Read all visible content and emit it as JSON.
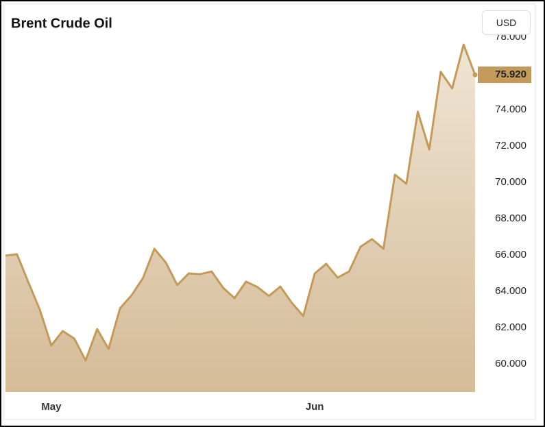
{
  "chart_data": {
    "type": "area",
    "title": "Brent Crude Oil",
    "currency": "USD",
    "categories": [
      null,
      null,
      null,
      null,
      "May",
      null,
      null,
      null,
      null,
      null,
      null,
      null,
      null,
      null,
      null,
      null,
      null,
      null,
      null,
      null,
      null,
      null,
      null,
      null,
      null,
      null,
      null,
      "Jun",
      null,
      null,
      null,
      null,
      null,
      null,
      null,
      null,
      null,
      null,
      null,
      null,
      null,
      null
    ],
    "series": [
      {
        "name": "Brent Crude Oil",
        "color": "#c49a5a",
        "values": [
          65.96,
          66.04,
          64.49,
          62.98,
          61.02,
          61.81,
          61.4,
          60.19,
          61.92,
          60.83,
          63.06,
          63.77,
          64.72,
          66.34,
          65.58,
          64.34,
          64.98,
          64.94,
          65.09,
          64.19,
          63.62,
          64.53,
          64.23,
          63.74,
          64.26,
          63.36,
          62.64,
          64.98,
          65.51,
          64.75,
          65.09,
          66.45,
          66.87,
          66.34,
          70.42,
          69.92,
          73.89,
          71.81,
          76.08,
          75.17,
          77.58,
          75.92
        ]
      }
    ],
    "last_price": {
      "value": 75.92,
      "label": "75.920"
    },
    "ylim": [
      58.45,
      78.34
    ],
    "yticks": [
      {
        "value": 60,
        "label": "60.000"
      },
      {
        "value": 62,
        "label": "62.000"
      },
      {
        "value": 64,
        "label": "64.000"
      },
      {
        "value": 66,
        "label": "66.000"
      },
      {
        "value": 68,
        "label": "68.000"
      },
      {
        "value": 70,
        "label": "70.000"
      },
      {
        "value": 72,
        "label": "72.000"
      },
      {
        "value": 74,
        "label": "74.000"
      },
      {
        "value": 78,
        "label": "78.000"
      }
    ]
  }
}
